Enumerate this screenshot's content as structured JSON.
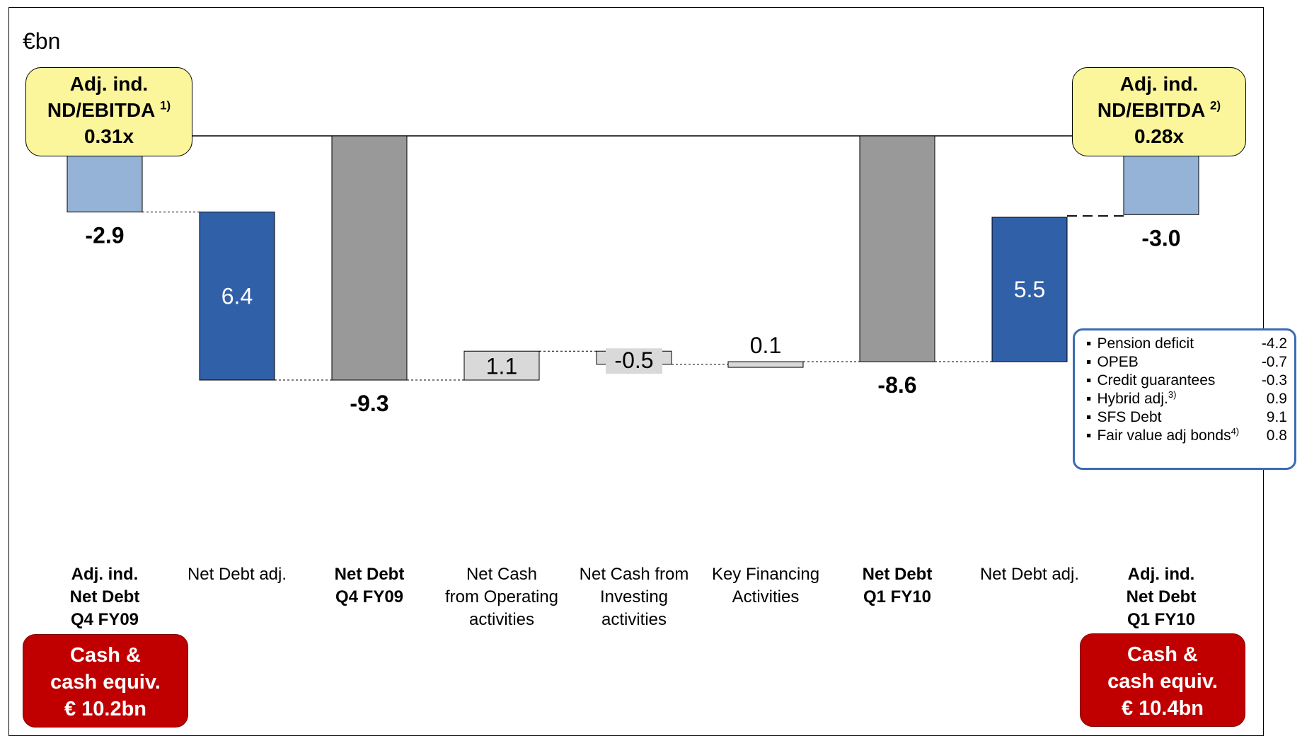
{
  "chart_data": {
    "type": "waterfall",
    "unit": "€bn",
    "baseline_value": 0,
    "categories": [
      {
        "label": [
          "Adj. ind.",
          "Net Debt",
          "Q4 FY09"
        ],
        "bold": true
      },
      {
        "label": [
          "Net Debt adj."
        ],
        "bold": false
      },
      {
        "label": [
          "Net Debt",
          "Q4 FY09"
        ],
        "bold": true
      },
      {
        "label": [
          "Net Cash",
          "from Operating",
          "activities"
        ],
        "bold": false
      },
      {
        "label": [
          "Net Cash from",
          "Investing",
          "activities"
        ],
        "bold": false
      },
      {
        "label": [
          "Key Financing",
          "Activities"
        ],
        "bold": false
      },
      {
        "label": [
          "Net Debt",
          "Q1 FY10"
        ],
        "bold": true
      },
      {
        "label": [
          "Net Debt adj."
        ],
        "bold": false
      },
      {
        "label": [
          "Adj. ind.",
          "Net Debt",
          "Q1 FY10"
        ],
        "bold": true
      }
    ],
    "bars": [
      {
        "start": 0,
        "end": -2.9,
        "value_label": "-2.9",
        "kind": "total-light",
        "color": "#95b3d7"
      },
      {
        "start": -2.9,
        "end": -9.3,
        "value_label": "6.4",
        "kind": "adjustment",
        "color": "#3060a8"
      },
      {
        "start": 0,
        "end": -9.3,
        "value_label": "-9.3",
        "kind": "total",
        "color": "#999999"
      },
      {
        "start": -9.3,
        "end": -8.2,
        "value_label": "1.1",
        "kind": "flow",
        "color": "#d9d9d9"
      },
      {
        "start": -8.2,
        "end": -8.7,
        "value_label": "-0.5",
        "kind": "flow",
        "color": "#d9d9d9"
      },
      {
        "start": -8.7,
        "end": -8.6,
        "value_label": "0.1",
        "kind": "flow",
        "color": "#d9d9d9"
      },
      {
        "start": 0,
        "end": -8.6,
        "value_label": "-8.6",
        "kind": "total",
        "color": "#999999"
      },
      {
        "start": -8.6,
        "end": -3.1,
        "value_label": "5.5",
        "kind": "adjustment",
        "color": "#3060a8"
      },
      {
        "start": 0,
        "end": -3.0,
        "value_label": "-3.0",
        "kind": "total-light",
        "color": "#95b3d7"
      }
    ],
    "ratio_boxes": [
      {
        "line1": "Adj. ind.",
        "line2": "ND/EBITDA",
        "note": "1)",
        "value": "0.31x"
      },
      {
        "line1": "Adj. ind.",
        "line2": "ND/EBITDA",
        "note": "2)",
        "value": "0.28x"
      }
    ],
    "cash_boxes": [
      {
        "line1": "Cash &",
        "line2": "cash equiv.",
        "line3": "€ 10.2bn"
      },
      {
        "line1": "Cash &",
        "line2": "cash equiv.",
        "line3": "€ 10.4bn"
      }
    ],
    "breakdown": [
      {
        "label": "Pension deficit",
        "note": "",
        "value": "-4.2"
      },
      {
        "label": "OPEB",
        "note": "",
        "value": "-0.7"
      },
      {
        "label": "Credit guarantees",
        "note": "",
        "value": "-0.3"
      },
      {
        "label": "Hybrid adj.",
        "note": "3)",
        "value": "0.9"
      },
      {
        "label": "SFS Debt",
        "note": "",
        "value": "9.1"
      },
      {
        "label": "Fair value adj bonds",
        "note": "4)",
        "value": "0.8"
      }
    ]
  }
}
